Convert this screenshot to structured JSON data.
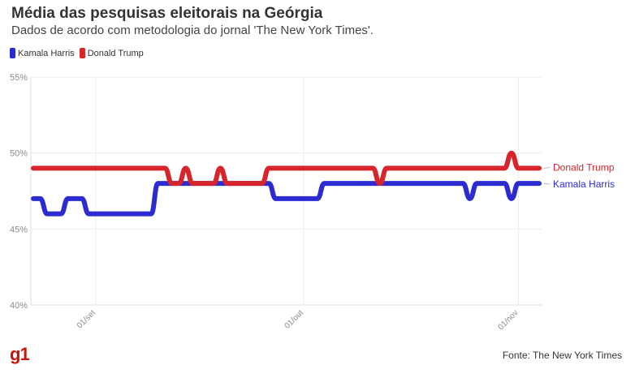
{
  "header": {
    "title": "Média das pesquisas eleitorais na Geórgia",
    "subtitle": "Dados de acordo com metodologia do jornal 'The New York Times'."
  },
  "footer": {
    "source": "Fonte: The New York Times",
    "logo": "g1"
  },
  "colors": {
    "harris": "#2b2bd1",
    "trump": "#d6262c"
  },
  "chart_data": {
    "type": "line",
    "title": "Média das pesquisas eleitorais na Geórgia",
    "subtitle": "Dados de acordo com metodologia do jornal 'The New York Times'.",
    "xlabel": "",
    "ylabel": "",
    "x_ticks": [
      "01/set",
      "01/out",
      "01/nov"
    ],
    "y_ticks": [
      "40%",
      "45%",
      "50%",
      "55%"
    ],
    "ylim": [
      40,
      55
    ],
    "grid": true,
    "legend_position": "top-left",
    "x": [
      "2024-08-23",
      "2024-08-24",
      "2024-08-25",
      "2024-08-26",
      "2024-08-27",
      "2024-08-28",
      "2024-08-29",
      "2024-08-30",
      "2024-08-31",
      "2024-09-01",
      "2024-09-02",
      "2024-09-03",
      "2024-09-04",
      "2024-09-05",
      "2024-09-06",
      "2024-09-07",
      "2024-09-08",
      "2024-09-09",
      "2024-09-10",
      "2024-09-11",
      "2024-09-12",
      "2024-09-13",
      "2024-09-14",
      "2024-09-15",
      "2024-09-16",
      "2024-09-17",
      "2024-09-18",
      "2024-09-19",
      "2024-09-20",
      "2024-09-21",
      "2024-09-22",
      "2024-09-23",
      "2024-09-24",
      "2024-09-25",
      "2024-09-26",
      "2024-09-27",
      "2024-09-28",
      "2024-09-29",
      "2024-09-30",
      "2024-10-01",
      "2024-10-02",
      "2024-10-03",
      "2024-10-04",
      "2024-10-05",
      "2024-10-06",
      "2024-10-07",
      "2024-10-08",
      "2024-10-09",
      "2024-10-10",
      "2024-10-11",
      "2024-10-12",
      "2024-10-13",
      "2024-10-14",
      "2024-10-15",
      "2024-10-16",
      "2024-10-17",
      "2024-10-18",
      "2024-10-19",
      "2024-10-20",
      "2024-10-21",
      "2024-10-22",
      "2024-10-23",
      "2024-10-24",
      "2024-10-25",
      "2024-10-26",
      "2024-10-27",
      "2024-10-28",
      "2024-10-29",
      "2024-10-30",
      "2024-10-31",
      "2024-11-01",
      "2024-11-02",
      "2024-11-03",
      "2024-11-04"
    ],
    "series": [
      {
        "name": "Kamala Harris",
        "end_label": "Kamala Harris",
        "values": [
          47,
          47,
          46,
          46,
          46,
          47,
          47,
          47,
          46,
          46,
          46,
          46,
          46,
          46,
          46,
          46,
          46,
          46,
          48,
          48,
          48,
          48,
          48,
          48,
          48,
          48,
          48,
          48,
          48,
          48,
          48,
          48,
          48,
          48,
          48,
          47,
          47,
          47,
          47,
          47,
          47,
          47,
          48,
          48,
          48,
          48,
          48,
          48,
          48,
          48,
          48,
          48,
          48,
          48,
          48,
          48,
          48,
          48,
          48,
          48,
          48,
          48,
          48,
          47,
          48,
          48,
          48,
          48,
          48,
          47,
          48,
          48,
          48,
          48
        ]
      },
      {
        "name": "Donald Trump",
        "end_label": "Donald Trump",
        "values": [
          49,
          49,
          49,
          49,
          49,
          49,
          49,
          49,
          49,
          49,
          49,
          49,
          49,
          49,
          49,
          49,
          49,
          49,
          49,
          49,
          48,
          48,
          49,
          48,
          48,
          48,
          48,
          49,
          48,
          48,
          48,
          48,
          48,
          48,
          49,
          49,
          49,
          49,
          49,
          49,
          49,
          49,
          49,
          49,
          49,
          49,
          49,
          49,
          49,
          49,
          48,
          49,
          49,
          49,
          49,
          49,
          49,
          49,
          49,
          49,
          49,
          49,
          49,
          49,
          49,
          49,
          49,
          49,
          49,
          50,
          49,
          49,
          49,
          49
        ]
      }
    ]
  }
}
